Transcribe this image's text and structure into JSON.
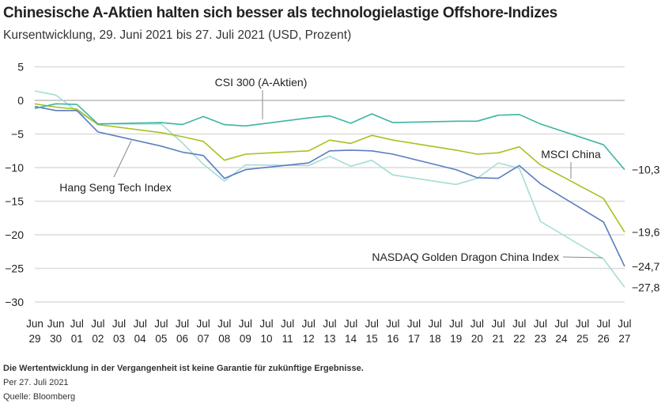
{
  "title": "Chinesische A-Aktien halten sich besser als technologielastige Offshore-Indizes",
  "subtitle": "Kursentwicklung, 29. Juni 2021 bis 27. Juli 2021 (USD, Prozent)",
  "footer": {
    "disclaimer": "Die Wertentwicklung in der Vergangenheit ist keine Garantie für zukünftige Ergebnisse.",
    "as_of": "Per 27. Juli 2021",
    "source": "Quelle: Bloomberg"
  },
  "chart_data": {
    "type": "line",
    "title": "Chinesische A-Aktien halten sich besser als technologielastige Offshore-Indizes",
    "subtitle": "Kursentwicklung, 29. Juni 2021 bis 27. Juli 2021 (USD, Prozent)",
    "ylim": [
      -30,
      5
    ],
    "yticks": [
      "5",
      "0",
      "−5",
      "−10",
      "−15",
      "−20",
      "−25",
      "−30"
    ],
    "ytick_values": [
      5,
      0,
      -5,
      -10,
      -15,
      -20,
      -25,
      -30
    ],
    "xtick_labels": [
      [
        "Jun",
        "29"
      ],
      [
        "Jun",
        "30"
      ],
      [
        "Jul",
        "01"
      ],
      [
        "Jul",
        "02"
      ],
      [
        "Jul",
        "03"
      ],
      [
        "Jul",
        "04"
      ],
      [
        "Jul",
        "05"
      ],
      [
        "Jul",
        "06"
      ],
      [
        "Jul",
        "07"
      ],
      [
        "Jul",
        "08"
      ],
      [
        "Jul",
        "09"
      ],
      [
        "Jul",
        "10"
      ],
      [
        "Jul",
        "11"
      ],
      [
        "Jul",
        "12"
      ],
      [
        "Jul",
        "13"
      ],
      [
        "Jul",
        "14"
      ],
      [
        "Jul",
        "15"
      ],
      [
        "Jul",
        "16"
      ],
      [
        "Jul",
        "17"
      ],
      [
        "Jul",
        "18"
      ],
      [
        "Jul",
        "19"
      ],
      [
        "Jul",
        "20"
      ],
      [
        "Jul",
        "21"
      ],
      [
        "Jul",
        "22"
      ],
      [
        "Jul",
        "23"
      ],
      [
        "Jul",
        "24"
      ],
      [
        "Jul",
        "25"
      ],
      [
        "Jul",
        "26"
      ],
      [
        "Jul",
        "27"
      ]
    ],
    "x": [
      "2021-06-29",
      "2021-06-30",
      "2021-07-01",
      "2021-07-02",
      "2021-07-05",
      "2021-07-06",
      "2021-07-07",
      "2021-07-08",
      "2021-07-09",
      "2021-07-12",
      "2021-07-13",
      "2021-07-14",
      "2021-07-15",
      "2021-07-16",
      "2021-07-19",
      "2021-07-20",
      "2021-07-21",
      "2021-07-22",
      "2021-07-23",
      "2021-07-26",
      "2021-07-27"
    ],
    "grid": "horizontal",
    "series": [
      {
        "name": "CSI 300 (A-Aktien)",
        "color": "#3db5a2",
        "end_label": "−10,3",
        "values": [
          -1.2,
          -0.5,
          -0.6,
          -3.5,
          -3.3,
          -3.6,
          -2.4,
          -3.6,
          -3.8,
          -2.6,
          -2.3,
          -3.4,
          -2.0,
          -3.3,
          -3.1,
          -3.1,
          -2.2,
          -2.1,
          -3.5,
          -6.6,
          -10.3
        ]
      },
      {
        "name": "MSCI China",
        "color": "#a8c11c",
        "end_label": "−19,6",
        "values": [
          -0.5,
          -1.0,
          -1.3,
          -3.6,
          -4.8,
          -5.4,
          -6.1,
          -8.9,
          -8.0,
          -7.5,
          -5.9,
          -6.4,
          -5.2,
          -5.9,
          -7.4,
          -8.0,
          -7.8,
          -6.9,
          -9.6,
          -14.6,
          -19.6
        ]
      },
      {
        "name": "Hang Seng Tech Index",
        "color": "#5b7dbf",
        "end_label": "−24,7",
        "values": [
          -0.9,
          -1.5,
          -1.5,
          -4.7,
          -6.8,
          -7.7,
          -8.2,
          -11.6,
          -10.3,
          -9.3,
          -7.5,
          -7.4,
          -7.5,
          -8.0,
          -10.3,
          -11.5,
          -11.6,
          -9.7,
          -12.4,
          -18.1,
          -24.7
        ]
      },
      {
        "name": "NASDAQ Golden Dragon China Index",
        "color": "#a3ddd6",
        "end_label": "−27,8",
        "values": [
          1.4,
          0.8,
          -1.6,
          -3.5,
          -3.5,
          -6.3,
          -9.5,
          -12.0,
          -9.6,
          -9.7,
          -8.3,
          -9.8,
          -8.9,
          -11.1,
          -12.5,
          -11.6,
          -9.3,
          -10.1,
          -18.0,
          -23.6,
          -27.8
        ]
      }
    ]
  }
}
